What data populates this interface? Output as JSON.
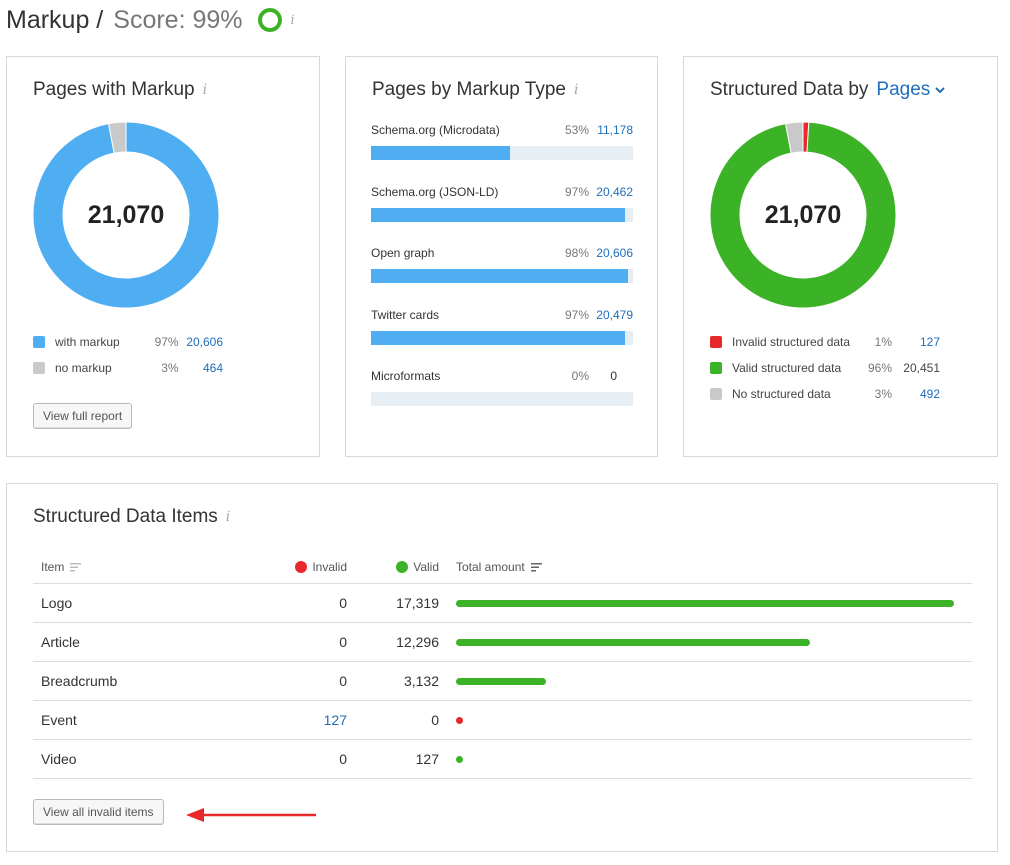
{
  "header": {
    "title": "Markup /",
    "score": "Score: 99%",
    "info": "i"
  },
  "colors": {
    "blue": "#4faef1",
    "grey": "#c9c9c9",
    "green": "#3cb226",
    "red": "#e8282b",
    "link": "#1f6ebd"
  },
  "pages_with_markup": {
    "title": "Pages with Markup",
    "info": "i",
    "total": "21,070",
    "legend": [
      {
        "label": "with markup",
        "pct": "97%",
        "value": "20,606",
        "color": "#4faef1",
        "fraction": 0.97
      },
      {
        "label": "no markup",
        "pct": "3%",
        "value": "464",
        "color": "#c9c9c9",
        "fraction": 0.03
      }
    ],
    "button": "View full report"
  },
  "pages_by_type": {
    "title": "Pages by Markup Type",
    "info": "i",
    "rows": [
      {
        "name": "Schema.org (Microdata)",
        "pct": "53%",
        "value": "11,178",
        "fraction": 0.53
      },
      {
        "name": "Schema.org (JSON-LD)",
        "pct": "97%",
        "value": "20,462",
        "fraction": 0.97
      },
      {
        "name": "Open graph",
        "pct": "98%",
        "value": "20,606",
        "fraction": 0.98
      },
      {
        "name": "Twitter cards",
        "pct": "97%",
        "value": "20,479",
        "fraction": 0.97
      },
      {
        "name": "Microformats",
        "pct": "0%",
        "value": "0",
        "fraction": 0
      }
    ]
  },
  "structured_data_by": {
    "title": "Structured Data by",
    "dropdown": "Pages",
    "total": "21,070",
    "legend": [
      {
        "label": "Invalid structured data",
        "pct": "1%",
        "value": "127",
        "color": "#e8282b",
        "fraction": 0.01,
        "link": true
      },
      {
        "label": "Valid structured data",
        "pct": "96%",
        "value": "20,451",
        "color": "#3cb226",
        "fraction": 0.96,
        "link": false
      },
      {
        "label": "No structured data",
        "pct": "3%",
        "value": "492",
        "color": "#c9c9c9",
        "fraction": 0.03,
        "link": true
      }
    ]
  },
  "items": {
    "title": "Structured Data Items",
    "info": "i",
    "columns": {
      "item": "Item",
      "invalid": "Invalid",
      "valid": "Valid",
      "total": "Total amount"
    },
    "rows": [
      {
        "item": "Logo",
        "invalid": "0",
        "valid": "17,319",
        "total": 17319
      },
      {
        "item": "Article",
        "invalid": "0",
        "valid": "12,296",
        "total": 12296
      },
      {
        "item": "Breadcrumb",
        "invalid": "0",
        "valid": "3,132",
        "total": 3132
      },
      {
        "item": "Event",
        "invalid": "127",
        "valid": "0",
        "total": 127
      },
      {
        "item": "Video",
        "invalid": "0",
        "valid": "127",
        "total": 127
      }
    ],
    "button": "View all invalid items"
  }
}
